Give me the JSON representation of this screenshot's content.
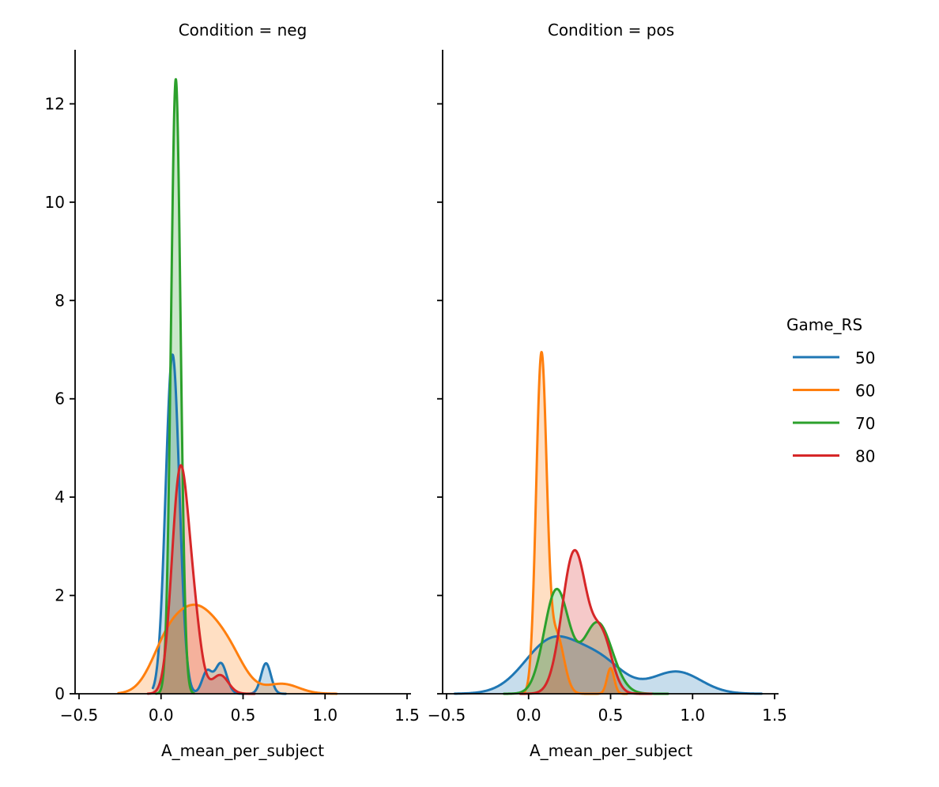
{
  "chart_data": {
    "type": "area",
    "kind": "kde",
    "facet_variable": "Condition",
    "hue_variable": "Game_RS",
    "xlabel": "A_mean_per_subject",
    "ylabel": "",
    "xlim": [
      -0.55,
      1.52
    ],
    "ylim": [
      0,
      13.1
    ],
    "xticks": [
      -0.5,
      0.0,
      0.5,
      1.0,
      1.5
    ],
    "xtick_labels": [
      "−0.5",
      "0.0",
      "0.5",
      "1.0",
      "1.5"
    ],
    "yticks": [
      0,
      2,
      4,
      6,
      8,
      10,
      12
    ],
    "ytick_labels": [
      "0",
      "2",
      "4",
      "6",
      "8",
      "10",
      "12"
    ],
    "grid": false,
    "fill": true,
    "legend": {
      "title": "Game_RS",
      "placement": "right",
      "entries": [
        {
          "label": "50",
          "color": "#1f77b4"
        },
        {
          "label": "60",
          "color": "#ff7f0e"
        },
        {
          "label": "70",
          "color": "#2ca02c"
        },
        {
          "label": "80",
          "color": "#d62728"
        }
      ]
    },
    "panels": [
      {
        "title": "Condition = neg",
        "series": [
          {
            "name": "50",
            "color": "#1f77b4",
            "support": [
              -0.05,
              0.76
            ],
            "approx_peak": {
              "x": 0.07,
              "y": 6.95
            },
            "components": [
              {
                "mu": 0.07,
                "sigma": 0.042,
                "height": 6.9
              },
              {
                "mu": 0.28,
                "sigma": 0.03,
                "height": 0.45
              },
              {
                "mu": 0.365,
                "sigma": 0.035,
                "height": 0.62
              },
              {
                "mu": 0.64,
                "sigma": 0.03,
                "height": 0.62
              }
            ]
          },
          {
            "name": "60",
            "color": "#ff7f0e",
            "support": [
              -0.26,
              1.07
            ],
            "approx_peak": {
              "x": 0.2,
              "y": 2.0
            },
            "components": [
              {
                "mu": 0.03,
                "sigma": 0.1,
                "height": 0.75
              },
              {
                "mu": 0.22,
                "sigma": 0.13,
                "height": 1.6
              },
              {
                "mu": 0.42,
                "sigma": 0.1,
                "height": 0.6
              },
              {
                "mu": 0.74,
                "sigma": 0.1,
                "height": 0.2
              }
            ]
          },
          {
            "name": "70",
            "color": "#2ca02c",
            "support": [
              -0.03,
              0.2
            ],
            "approx_peak": {
              "x": 0.09,
              "y": 12.5
            },
            "components": [
              {
                "mu": 0.09,
                "sigma": 0.029,
                "height": 12.5
              }
            ]
          },
          {
            "name": "80",
            "color": "#d62728",
            "support": [
              -0.08,
              0.57
            ],
            "approx_peak": {
              "x": 0.12,
              "y": 4.7
            },
            "components": [
              {
                "mu": 0.115,
                "sigma": 0.05,
                "height": 4.4
              },
              {
                "mu": 0.2,
                "sigma": 0.045,
                "height": 1.3
              },
              {
                "mu": 0.36,
                "sigma": 0.05,
                "height": 0.38
              }
            ]
          }
        ]
      },
      {
        "title": "Condition = pos",
        "series": [
          {
            "name": "50",
            "color": "#1f77b4",
            "support": [
              -0.45,
              1.42
            ],
            "approx_peak": {
              "x": 0.2,
              "y": 1.38
            },
            "components": [
              {
                "mu": 0.15,
                "sigma": 0.17,
                "height": 1.1
              },
              {
                "mu": 0.45,
                "sigma": 0.14,
                "height": 0.55
              },
              {
                "mu": 0.9,
                "sigma": 0.15,
                "height": 0.45
              }
            ]
          },
          {
            "name": "60",
            "color": "#ff7f0e",
            "support": [
              -0.05,
              0.6
            ],
            "approx_peak": {
              "x": 0.08,
              "y": 7.08
            },
            "components": [
              {
                "mu": 0.078,
                "sigma": 0.032,
                "height": 6.8
              },
              {
                "mu": 0.17,
                "sigma": 0.045,
                "height": 1.2
              },
              {
                "mu": 0.5,
                "sigma": 0.022,
                "height": 0.52
              }
            ]
          },
          {
            "name": "70",
            "color": "#2ca02c",
            "support": [
              -0.15,
              0.85
            ],
            "approx_peak": {
              "x": 0.18,
              "y": 2.4
            },
            "components": [
              {
                "mu": 0.17,
                "sigma": 0.075,
                "height": 2.1
              },
              {
                "mu": 0.42,
                "sigma": 0.09,
                "height": 1.45
              }
            ]
          },
          {
            "name": "80",
            "color": "#d62728",
            "support": [
              -0.05,
              0.75
            ],
            "approx_peak": {
              "x": 0.29,
              "y": 3.1
            },
            "components": [
              {
                "mu": 0.28,
                "sigma": 0.075,
                "height": 2.9
              },
              {
                "mu": 0.45,
                "sigma": 0.06,
                "height": 1.1
              }
            ]
          }
        ]
      }
    ]
  }
}
